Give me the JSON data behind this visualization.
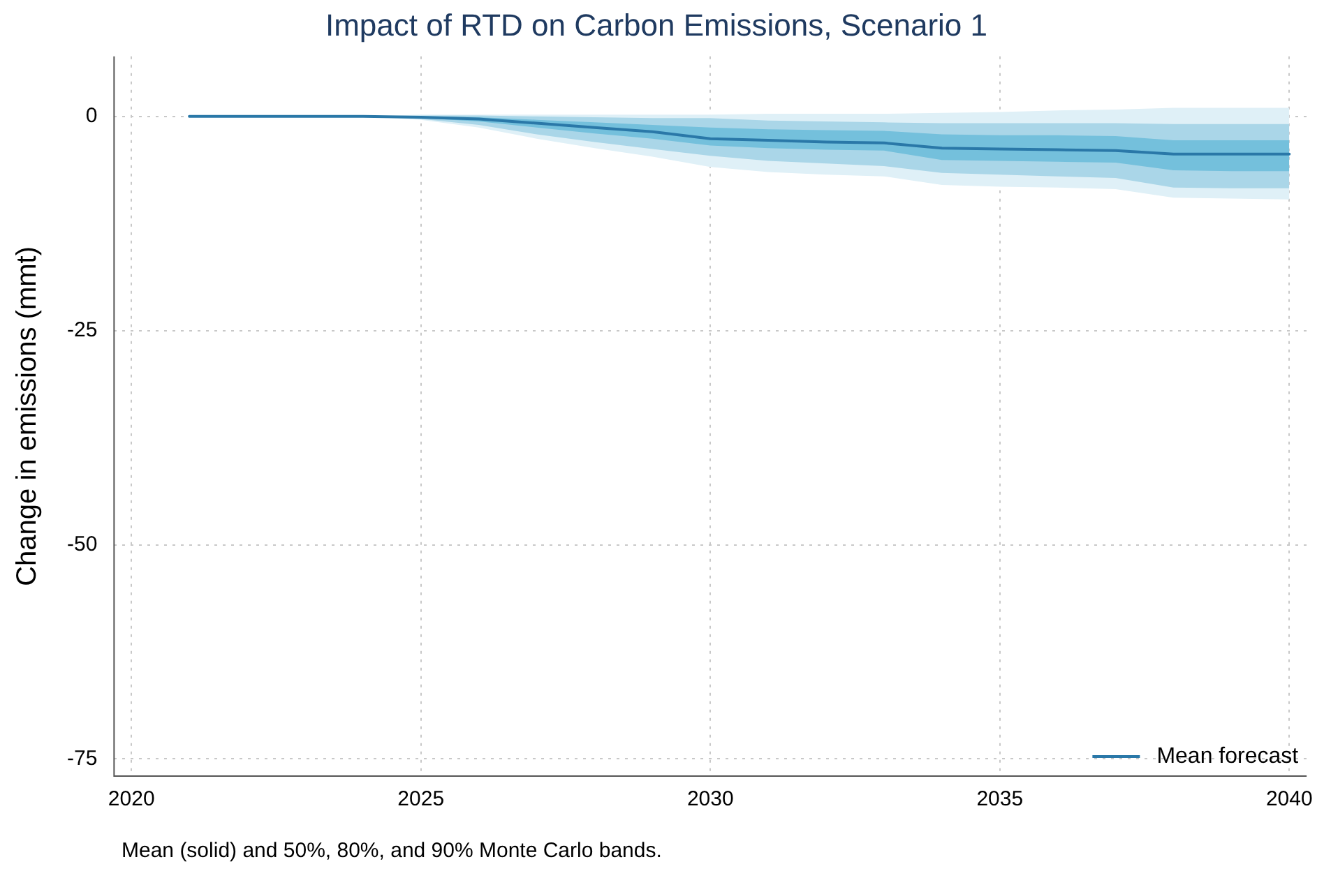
{
  "chart_data": {
    "type": "line",
    "title": "Impact of RTD on Carbon Emissions, Scenario 1",
    "ylabel": "Change in emissions (mmt)",
    "annotations": [
      "Mean (solid) and 50%, 80%, and 90% Monte Carlo bands."
    ],
    "x": [
      2021,
      2022,
      2023,
      2024,
      2025,
      2026,
      2027,
      2028,
      2029,
      2030,
      2031,
      2032,
      2033,
      2034,
      2035,
      2036,
      2037,
      2038,
      2039,
      2040
    ],
    "xlim": [
      2019.7,
      2040.3
    ],
    "xticks": [
      2020,
      2025,
      2030,
      2035,
      2040
    ],
    "ylim": [
      -77,
      7
    ],
    "yticks": [
      -75,
      -50,
      -25,
      0
    ],
    "grid": true,
    "legend": "bottom right",
    "marker": "none",
    "line_style": "solid",
    "series": [
      {
        "type": "area",
        "color": "#dff0f7",
        "values": [
          null,
          null,
          null,
          null,
          null,
          null,
          null,
          null,
          null,
          null,
          null,
          null,
          null,
          null,
          null,
          null,
          null,
          null,
          null,
          null
        ],
        "lower": [
          0,
          0,
          0,
          0,
          -0.4,
          -1.3,
          -2.6,
          -3.7,
          -4.7,
          -5.9,
          -6.5,
          -6.8,
          -7.0,
          -8.0,
          -8.2,
          -8.3,
          -8.5,
          -9.5,
          -9.6,
          -9.7
        ],
        "upper": [
          0,
          0,
          0,
          0,
          0.2,
          0.2,
          0.2,
          0.2,
          0.2,
          0.2,
          0.3,
          0.3,
          0.3,
          0.4,
          0.5,
          0.7,
          0.8,
          1.0,
          1.0,
          1.0
        ]
      },
      {
        "type": "area",
        "color": "#aad6e8",
        "values": [
          null,
          null,
          null,
          null,
          null,
          null,
          null,
          null,
          null,
          null,
          null,
          null,
          null,
          null,
          null,
          null,
          null,
          null,
          null,
          null
        ],
        "lower": [
          0,
          0,
          0,
          0,
          -0.3,
          -1.0,
          -2.1,
          -3.0,
          -3.8,
          -4.6,
          -5.2,
          -5.5,
          -5.8,
          -6.6,
          -6.8,
          -7.0,
          -7.2,
          -8.3,
          -8.4,
          -8.4
        ],
        "upper": [
          0,
          0,
          0,
          0,
          0.1,
          0.1,
          0,
          -0.1,
          -0.2,
          -0.2,
          -0.5,
          -0.6,
          -0.7,
          -0.8,
          -0.8,
          -0.8,
          -0.8,
          -0.9,
          -0.9,
          -0.9
        ]
      },
      {
        "type": "area",
        "color": "#74c0dc",
        "values": [
          null,
          null,
          null,
          null,
          null,
          null,
          null,
          null,
          null,
          null,
          null,
          null,
          null,
          null,
          null,
          null,
          null,
          null,
          null,
          null
        ],
        "lower": [
          0,
          0,
          0,
          0,
          -0.2,
          -0.6,
          -1.3,
          -2.0,
          -2.6,
          -3.4,
          -3.7,
          -3.9,
          -4.0,
          -5.1,
          -5.2,
          -5.3,
          -5.4,
          -6.3,
          -6.4,
          -6.4
        ],
        "upper": [
          0,
          0,
          0,
          0,
          0,
          -0.1,
          -0.4,
          -0.7,
          -1.0,
          -1.3,
          -1.5,
          -1.6,
          -1.7,
          -2.1,
          -2.2,
          -2.2,
          -2.3,
          -2.8,
          -2.8,
          -2.8
        ]
      },
      {
        "name": "Mean forecast",
        "color": "#2a78a8",
        "values": [
          0,
          0,
          0,
          0,
          -0.1,
          -0.3,
          -0.8,
          -1.3,
          -1.8,
          -2.6,
          -2.8,
          -3.0,
          -3.1,
          -3.7,
          -3.8,
          -3.9,
          -4.0,
          -4.4,
          -4.4,
          -4.4
        ]
      }
    ]
  }
}
